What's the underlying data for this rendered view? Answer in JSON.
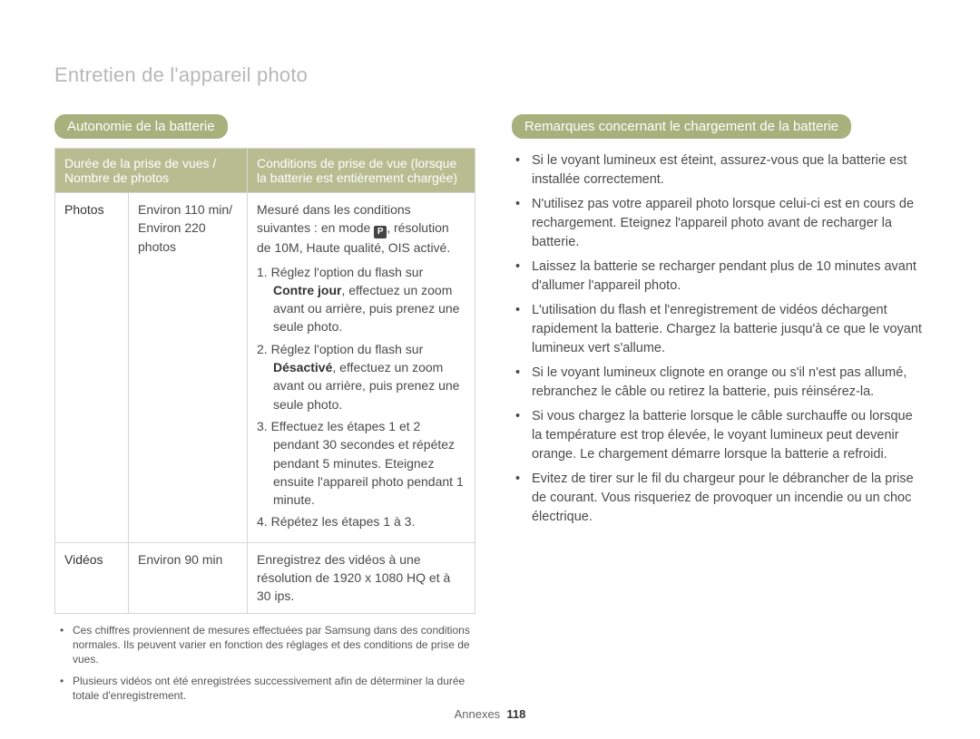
{
  "colors": {
    "page_title": "#b8b8b8",
    "pill_bg": "#a8b07d",
    "pill_fg": "#ffffff",
    "th_bg": "#b7bd91",
    "th_fg": "#ffffff",
    "body_text": "#4a4a4a",
    "border": "#d6d6d6",
    "mode_icon_bg": "#444444",
    "mode_icon_fg": "#ffffff"
  },
  "page": {
    "title": "Entretien de l'appareil photo",
    "footer_label": "Annexes",
    "page_number": "118"
  },
  "left": {
    "heading": "Autonomie de la batterie",
    "table": {
      "header_col1": "Durée de la prise de vues / Nombre de photos",
      "header_col2": "Conditions de prise de vue (lorsque la batterie est entièrement chargée)",
      "rows": {
        "photos": {
          "label": "Photos",
          "duration": "Environ 110 min/ Environ 220 photos",
          "conditions_intro": "Mesuré dans les conditions suivantes : en mode ",
          "conditions_intro_mode": "P",
          "conditions_intro_tail": ", résolution de 10M, Haute qualité, OIS activé.",
          "steps": [
            {
              "n": "1.",
              "pre": "Réglez l'option du flash sur ",
              "bold": "Contre jour",
              "post": ", effectuez un zoom avant ou arrière, puis prenez une seule photo."
            },
            {
              "n": "2.",
              "pre": "Réglez l'option du flash sur ",
              "bold": "Désactivé",
              "post": ", effectuez un zoom avant ou arrière, puis prenez une seule photo."
            },
            {
              "n": "3.",
              "pre": "",
              "bold": "",
              "post": "Effectuez les étapes 1 et 2 pendant 30 secondes et répétez pendant 5 minutes. Eteignez ensuite l'appareil photo pendant 1 minute."
            },
            {
              "n": "4.",
              "pre": "",
              "bold": "",
              "post": "Répétez les étapes 1 à 3."
            }
          ]
        },
        "videos": {
          "label": "Vidéos",
          "duration": "Environ 90 min",
          "conditions": "Enregistrez des vidéos à une résolution de 1920 x 1080 HQ et à 30 ips."
        }
      }
    },
    "footnotes": [
      "Ces chiffres proviennent de mesures effectuées par Samsung dans des conditions normales. Ils peuvent varier en fonction des réglages et des conditions de prise de vues.",
      "Plusieurs vidéos ont été enregistrées successivement afin de déterminer la durée totale d'enregistrement."
    ]
  },
  "right": {
    "heading": "Remarques concernant le chargement de la batterie",
    "items": [
      "Si le voyant lumineux est éteint, assurez-vous que la batterie est installée correctement.",
      "N'utilisez pas votre appareil photo lorsque celui-ci est en cours de rechargement. Eteignez l'appareil photo avant de recharger la batterie.",
      "Laissez la batterie se recharger pendant plus de 10 minutes avant d'allumer l'appareil photo.",
      "L'utilisation du flash et l'enregistrement de vidéos déchargent rapidement la batterie. Chargez la batterie jusqu'à ce que le voyant lumineux vert s'allume.",
      "Si le voyant lumineux clignote en orange ou s'il n'est pas allumé, rebranchez le câble ou retirez la batterie, puis réinsérez-la.",
      "Si vous chargez la batterie lorsque le câble surchauffe ou lorsque la température est trop élevée, le voyant lumineux peut devenir orange. Le chargement démarre lorsque la batterie a refroidi.",
      "Evitez de tirer sur le fil du chargeur pour le débrancher de la prise de courant. Vous risqueriez de provoquer un incendie ou un choc électrique."
    ]
  }
}
